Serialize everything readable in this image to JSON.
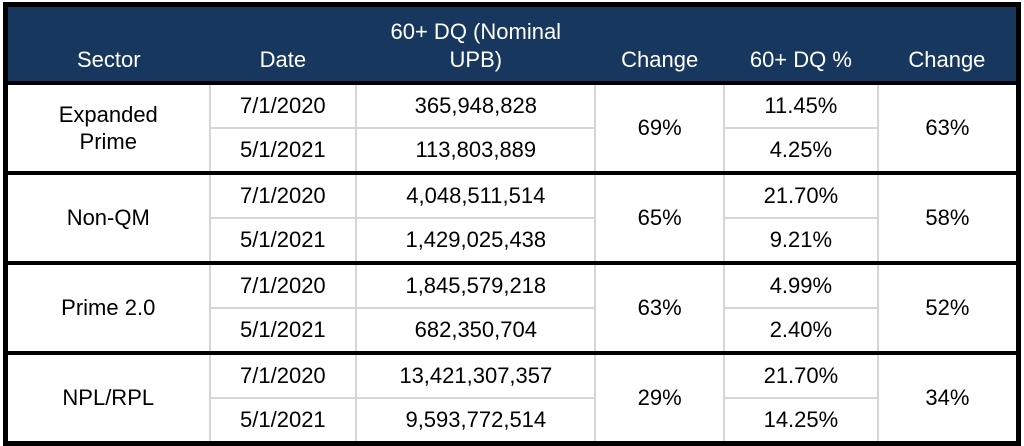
{
  "colors": {
    "header_bg": "#17375E",
    "header_text": "#FFFFFF",
    "grid_line": "#D6D6D6",
    "outer_border": "#000000",
    "body_text": "#000000"
  },
  "table": {
    "headers": {
      "sector": "Sector",
      "date": "Date",
      "upb": "60+ DQ (Nominal UPB)",
      "change_upb": "Change",
      "dq_pct": "60+ DQ %",
      "change_dq": "Change"
    },
    "groups": [
      {
        "sector": "Expanded Prime",
        "rows": [
          {
            "date": "7/1/2020",
            "upb": "365,948,828",
            "dq_pct": "11.45%"
          },
          {
            "date": "5/1/2021",
            "upb": "113,803,889",
            "dq_pct": "4.25%"
          }
        ],
        "upb_change": "69%",
        "dq_change": "63%"
      },
      {
        "sector": "Non-QM",
        "rows": [
          {
            "date": "7/1/2020",
            "upb": "4,048,511,514",
            "dq_pct": "21.70%"
          },
          {
            "date": "5/1/2021",
            "upb": "1,429,025,438",
            "dq_pct": "9.21%"
          }
        ],
        "upb_change": "65%",
        "dq_change": "58%"
      },
      {
        "sector": "Prime 2.0",
        "rows": [
          {
            "date": "7/1/2020",
            "upb": "1,845,579,218",
            "dq_pct": "4.99%"
          },
          {
            "date": "5/1/2021",
            "upb": "682,350,704",
            "dq_pct": "2.40%"
          }
        ],
        "upb_change": "63%",
        "dq_change": "52%"
      },
      {
        "sector": "NPL/RPL",
        "rows": [
          {
            "date": "7/1/2020",
            "upb": "13,421,307,357",
            "dq_pct": "21.70%"
          },
          {
            "date": "5/1/2021",
            "upb": "9,593,772,514",
            "dq_pct": "14.25%"
          }
        ],
        "upb_change": "29%",
        "dq_change": "34%"
      }
    ]
  },
  "chart_data": {
    "type": "table",
    "columns": [
      "Sector",
      "Date",
      "60+ DQ (Nominal UPB)",
      "Change",
      "60+ DQ %",
      "Change"
    ],
    "rows": [
      [
        "Expanded Prime",
        "7/1/2020",
        365948828,
        "69%",
        "11.45%",
        "63%"
      ],
      [
        "Expanded Prime",
        "5/1/2021",
        113803889,
        "69%",
        "4.25%",
        "63%"
      ],
      [
        "Non-QM",
        "7/1/2020",
        4048511514,
        "65%",
        "21.70%",
        "58%"
      ],
      [
        "Non-QM",
        "5/1/2021",
        1429025438,
        "65%",
        "9.21%",
        "58%"
      ],
      [
        "Prime 2.0",
        "7/1/2020",
        1845579218,
        "63%",
        "4.99%",
        "52%"
      ],
      [
        "Prime 2.0",
        "5/1/2021",
        682350704,
        "63%",
        "2.40%",
        "52%"
      ],
      [
        "NPL/RPL",
        "7/1/2020",
        13421307357,
        "29%",
        "21.70%",
        "34%"
      ],
      [
        "NPL/RPL",
        "5/1/2021",
        9593772514,
        "29%",
        "14.25%",
        "34%"
      ]
    ]
  }
}
